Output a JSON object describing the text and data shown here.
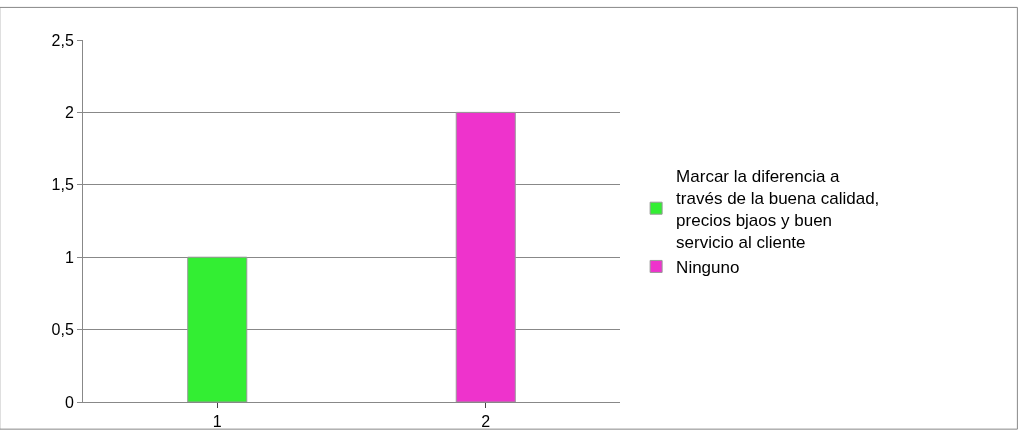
{
  "chart_data": {
    "type": "bar",
    "categories": [
      "1",
      "2"
    ],
    "series": [
      {
        "name": "Marcar la diferencia a través de la buena calidad, precios bjaos y buen servicio al cliente",
        "color": "#33ee33",
        "values": [
          1,
          null
        ]
      },
      {
        "name": "Ninguno",
        "color": "#ee33cc",
        "values": [
          null,
          2
        ]
      }
    ],
    "ylim": [
      0,
      2.5
    ],
    "yticks": [
      {
        "value": 0,
        "label": "0"
      },
      {
        "value": 0.5,
        "label": "0,5"
      },
      {
        "value": 1,
        "label": "1"
      },
      {
        "value": 1.5,
        "label": "1,5"
      },
      {
        "value": 2,
        "label": "2"
      },
      {
        "value": 2.5,
        "label": "2,5"
      }
    ],
    "grid": "y",
    "legend": "right"
  }
}
